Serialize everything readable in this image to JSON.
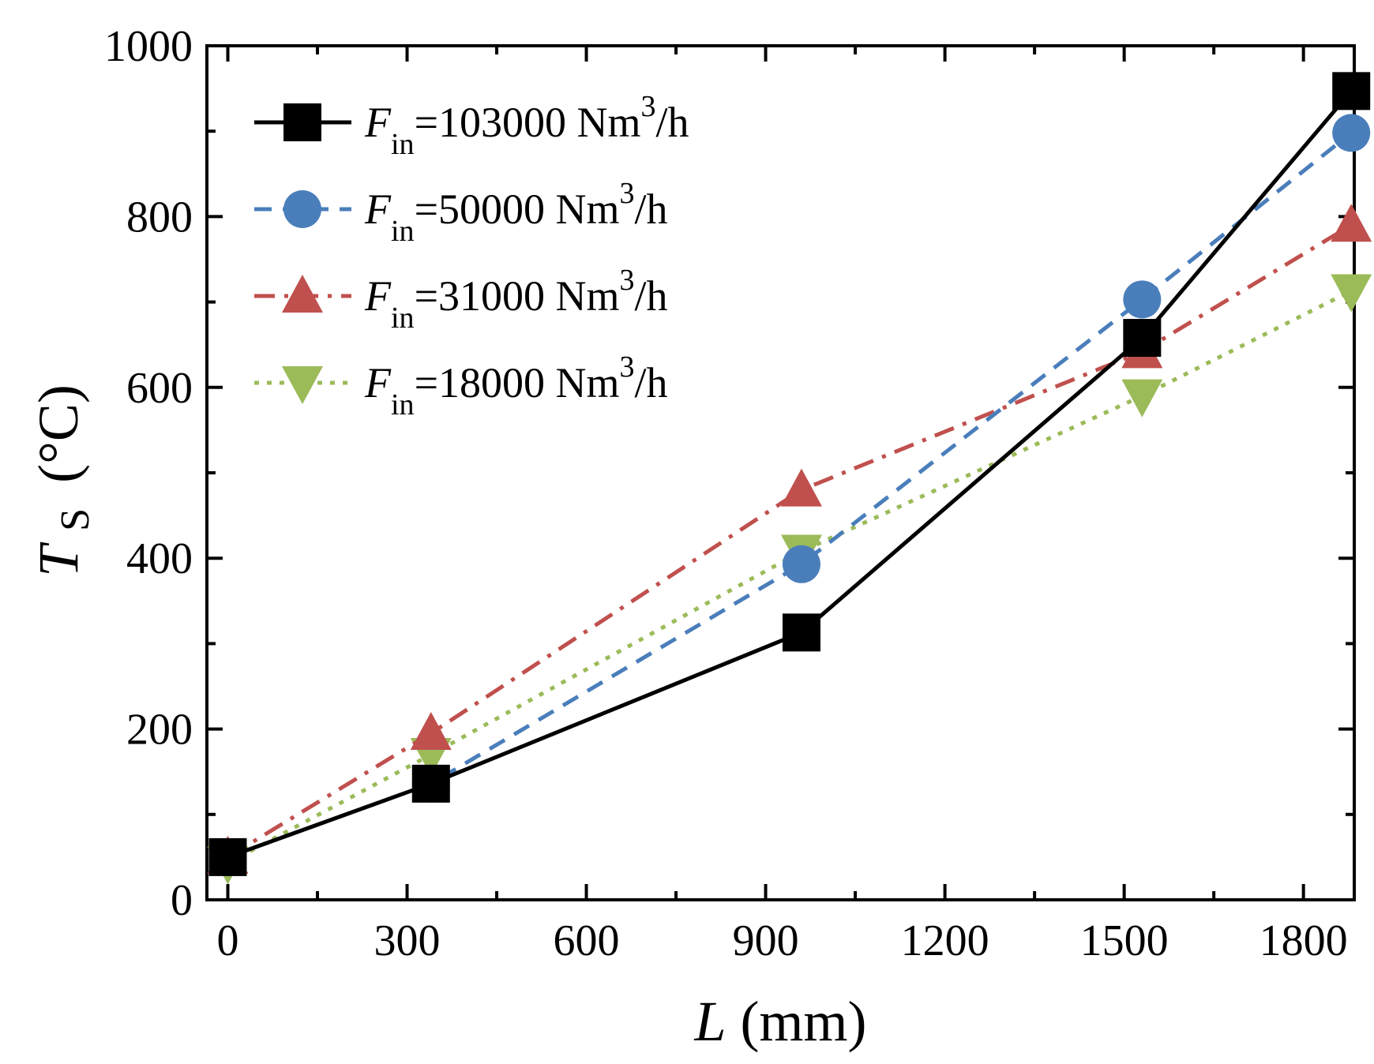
{
  "chart_data": {
    "type": "line",
    "title": "",
    "xlabel": {
      "symbol": "L",
      "unit": "(mm)"
    },
    "ylabel": {
      "symbol": "T",
      "subscript": "S",
      "unit": "(°C)"
    },
    "xlim": [
      -35,
      1885
    ],
    "ylim": [
      0,
      1000
    ],
    "xticks": [
      0,
      300,
      600,
      900,
      1200,
      1500,
      1800
    ],
    "yticks": [
      0,
      200,
      400,
      600,
      800,
      1000
    ],
    "xtick_labels": [
      "0",
      "300",
      "600",
      "900",
      "1200",
      "1500",
      "1800"
    ],
    "ytick_labels": [
      "0",
      "200",
      "400",
      "600",
      "800",
      "1000"
    ],
    "grid": false,
    "legend_position": "top-left",
    "x": [
      0,
      340,
      960,
      1530,
      1880
    ],
    "series": [
      {
        "name": "F_in=103000 Nm3/h",
        "label_main": "F",
        "label_sub": "in",
        "label_value": "=103000 Nm",
        "label_sup": "3",
        "label_unit": "/h",
        "values": [
          50,
          136,
          313,
          658,
          947
        ],
        "color": "#000000",
        "marker": "square",
        "dash": "solid"
      },
      {
        "name": "F_in=50000 Nm3/h",
        "label_main": "F",
        "label_sub": "in",
        "label_value": "=50000 Nm",
        "label_sup": "3",
        "label_unit": "/h",
        "values": [
          50,
          136,
          393,
          703,
          898
        ],
        "color": "#4a7ebb",
        "marker": "circle",
        "dash": "dash"
      },
      {
        "name": "F_in=31000 Nm3/h",
        "label_main": "F",
        "label_sub": "in",
        "label_value": "=31000 Nm",
        "label_sup": "3",
        "label_unit": "/h",
        "values": [
          50,
          195,
          480,
          642,
          790
        ],
        "color": "#c0504d",
        "marker": "triangle-up",
        "dash": "dashdot"
      },
      {
        "name": "F_in=18000 Nm3/h",
        "label_main": "F",
        "label_sub": "in",
        "label_value": "=18000 Nm",
        "label_sup": "3",
        "label_unit": "/h",
        "values": [
          43,
          170,
          408,
          590,
          713
        ],
        "color": "#9bbb59",
        "marker": "triangle-down",
        "dash": "dot"
      }
    ]
  }
}
